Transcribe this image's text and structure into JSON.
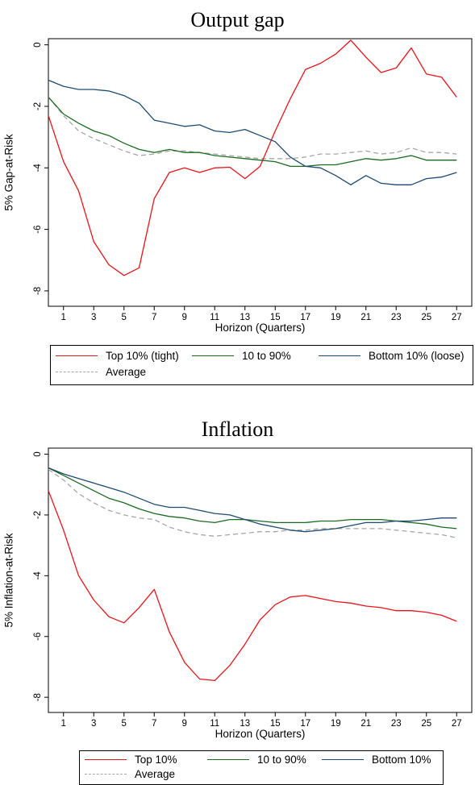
{
  "chart_data": [
    {
      "type": "line",
      "title": "Output gap",
      "xlabel": "Horizon (Quarters)",
      "ylabel": "5% Gap-at-Risk",
      "xlim": [
        0,
        28
      ],
      "ylim": [
        -8.5,
        0.2
      ],
      "xticks": [
        "1",
        "3",
        "5",
        "7",
        "9",
        "11",
        "13",
        "15",
        "17",
        "19",
        "21",
        "23",
        "25",
        "27"
      ],
      "yticks": [
        "0",
        "-2",
        "-4",
        "-6",
        "-8"
      ],
      "x": [
        0,
        1,
        2,
        3,
        4,
        5,
        6,
        7,
        8,
        9,
        10,
        11,
        12,
        13,
        14,
        15,
        16,
        17,
        18,
        19,
        20,
        21,
        22,
        23,
        24,
        25,
        26,
        27
      ],
      "series": [
        {
          "name": "Top 10% (tight)",
          "color": "#e8141a",
          "dash": "solid",
          "values": [
            -2.3,
            -3.8,
            -4.75,
            -6.4,
            -7.15,
            -7.5,
            -7.25,
            -5.0,
            -4.15,
            -4.0,
            -4.15,
            -4.0,
            -3.98,
            -4.35,
            -3.95,
            -2.8,
            -1.75,
            -0.8,
            -0.6,
            -0.3,
            0.15,
            -0.4,
            -0.9,
            -0.75,
            -0.1,
            -0.95,
            -1.05,
            -1.7
          ]
        },
        {
          "name": "10 to 90%",
          "color": "#1a6b1f",
          "dash": "solid",
          "values": [
            -1.7,
            -2.25,
            -2.55,
            -2.8,
            -2.95,
            -3.2,
            -3.4,
            -3.5,
            -3.4,
            -3.5,
            -3.5,
            -3.6,
            -3.65,
            -3.7,
            -3.75,
            -3.8,
            -3.95,
            -3.95,
            -3.9,
            -3.9,
            -3.8,
            -3.7,
            -3.75,
            -3.7,
            -3.6,
            -3.75,
            -3.75,
            -3.75
          ]
        },
        {
          "name": "Bottom 10% (loose)",
          "color": "#1d4a72",
          "dash": "solid",
          "values": [
            -1.15,
            -1.35,
            -1.45,
            -1.45,
            -1.5,
            -1.65,
            -1.9,
            -2.45,
            -2.55,
            -2.65,
            -2.6,
            -2.8,
            -2.85,
            -2.75,
            -2.95,
            -3.15,
            -3.65,
            -3.95,
            -4.0,
            -4.25,
            -4.55,
            -4.25,
            -4.5,
            -4.55,
            -4.55,
            -4.35,
            -4.3,
            -4.15
          ]
        },
        {
          "name": "Average",
          "color": "#a6a6a6",
          "dash": "dashed",
          "values": [
            -1.7,
            -2.3,
            -2.8,
            -3.05,
            -3.25,
            -3.45,
            -3.6,
            -3.55,
            -3.45,
            -3.45,
            -3.5,
            -3.55,
            -3.6,
            -3.65,
            -3.7,
            -3.7,
            -3.7,
            -3.65,
            -3.55,
            -3.55,
            -3.5,
            -3.45,
            -3.55,
            -3.5,
            -3.35,
            -3.5,
            -3.5,
            -3.55
          ]
        }
      ]
    },
    {
      "type": "line",
      "title": "Inflation",
      "xlabel": "Horizon (Quarters)",
      "ylabel": "5% Inflation-at-Risk",
      "xlim": [
        0,
        28
      ],
      "ylim": [
        -8.5,
        0.2
      ],
      "xticks": [
        "1",
        "3",
        "5",
        "7",
        "9",
        "11",
        "13",
        "15",
        "17",
        "19",
        "21",
        "23",
        "25",
        "27"
      ],
      "yticks": [
        "0",
        "-2",
        "-4",
        "-6",
        "-8"
      ],
      "x": [
        0,
        1,
        2,
        3,
        4,
        5,
        6,
        7,
        8,
        9,
        10,
        11,
        12,
        13,
        14,
        15,
        16,
        17,
        18,
        19,
        20,
        21,
        22,
        23,
        24,
        25,
        26,
        27
      ],
      "series": [
        {
          "name": "Top 10%",
          "color": "#e8141a",
          "dash": "solid",
          "values": [
            -1.2,
            -2.5,
            -4.0,
            -4.8,
            -5.35,
            -5.55,
            -5.05,
            -4.45,
            -5.85,
            -6.85,
            -7.4,
            -7.45,
            -6.95,
            -6.25,
            -5.45,
            -4.95,
            -4.7,
            -4.65,
            -4.75,
            -4.85,
            -4.9,
            -5.0,
            -5.05,
            -5.15,
            -5.15,
            -5.2,
            -5.3,
            -5.5
          ]
        },
        {
          "name": "10 to 90%",
          "color": "#1a6b1f",
          "dash": "solid",
          "values": [
            -0.45,
            -0.7,
            -0.95,
            -1.2,
            -1.45,
            -1.6,
            -1.8,
            -1.95,
            -2.05,
            -2.1,
            -2.2,
            -2.25,
            -2.15,
            -2.15,
            -2.2,
            -2.25,
            -2.25,
            -2.25,
            -2.2,
            -2.2,
            -2.15,
            -2.15,
            -2.15,
            -2.2,
            -2.25,
            -2.3,
            -2.4,
            -2.45
          ]
        },
        {
          "name": "Bottom 10%",
          "color": "#1d4a72",
          "dash": "solid",
          "values": [
            -0.45,
            -0.65,
            -0.8,
            -0.95,
            -1.1,
            -1.25,
            -1.45,
            -1.65,
            -1.75,
            -1.75,
            -1.85,
            -1.95,
            -2.0,
            -2.15,
            -2.3,
            -2.4,
            -2.5,
            -2.55,
            -2.5,
            -2.45,
            -2.35,
            -2.25,
            -2.25,
            -2.2,
            -2.2,
            -2.15,
            -2.1,
            -2.1
          ]
        },
        {
          "name": "Average",
          "color": "#a6a6a6",
          "dash": "dashed",
          "values": [
            -0.5,
            -0.85,
            -1.3,
            -1.6,
            -1.85,
            -2.0,
            -2.1,
            -2.15,
            -2.4,
            -2.55,
            -2.65,
            -2.7,
            -2.65,
            -2.6,
            -2.55,
            -2.55,
            -2.5,
            -2.5,
            -2.45,
            -2.45,
            -2.45,
            -2.45,
            -2.45,
            -2.5,
            -2.55,
            -2.6,
            -2.65,
            -2.75
          ]
        }
      ]
    }
  ]
}
